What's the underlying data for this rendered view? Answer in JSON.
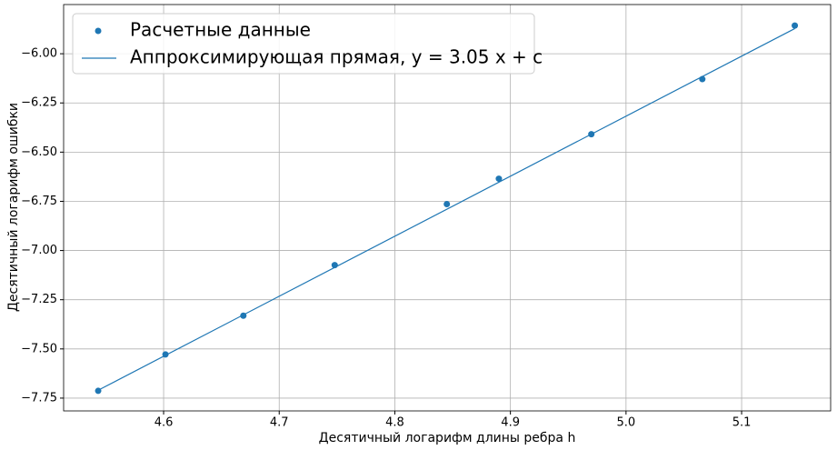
{
  "chart_data": {
    "type": "scatter",
    "xlabel": "Десятичный логарифм длины ребра h",
    "ylabel": "Десятичный логарифм ошибки",
    "xlim": [
      4.5135,
      5.177
    ],
    "ylim": [
      -7.815,
      -5.75
    ],
    "xticks": [
      4.6,
      4.7,
      4.8,
      4.9,
      {
        "value": 5,
        "label": "5.0"
      },
      5.1
    ],
    "yticks": [
      {
        "value": -6,
        "label": "−6.00"
      },
      {
        "value": -6.25,
        "label": "−6.25"
      },
      {
        "value": -6.5,
        "label": "−6.50"
      },
      {
        "value": -6.75,
        "label": "−6.75"
      },
      {
        "value": -7,
        "label": "−7.00"
      },
      {
        "value": -7.25,
        "label": "−7.25"
      },
      {
        "value": -7.5,
        "label": "−7.50"
      },
      {
        "value": -7.75,
        "label": "−7.75"
      }
    ],
    "grid": true,
    "legend": "upper left",
    "series": [
      {
        "name": "Расчетные данные",
        "type": "scatter",
        "color": "#1f77b4",
        "x": [
          4.5434,
          4.6016,
          4.669,
          4.748,
          4.845,
          4.89,
          4.97,
          5.066,
          5.146
        ],
        "values": [
          -7.713,
          -7.528,
          -7.331,
          -7.074,
          -6.764,
          -6.635,
          -6.409,
          -6.129,
          -5.857
        ]
      },
      {
        "name": "Аппроксимирующая прямая, y = 3.05 x + c",
        "type": "line",
        "color": "#1f77b4",
        "x": [
          4.5434,
          5.146
        ],
        "values": [
          -7.71,
          -5.872
        ]
      }
    ]
  }
}
